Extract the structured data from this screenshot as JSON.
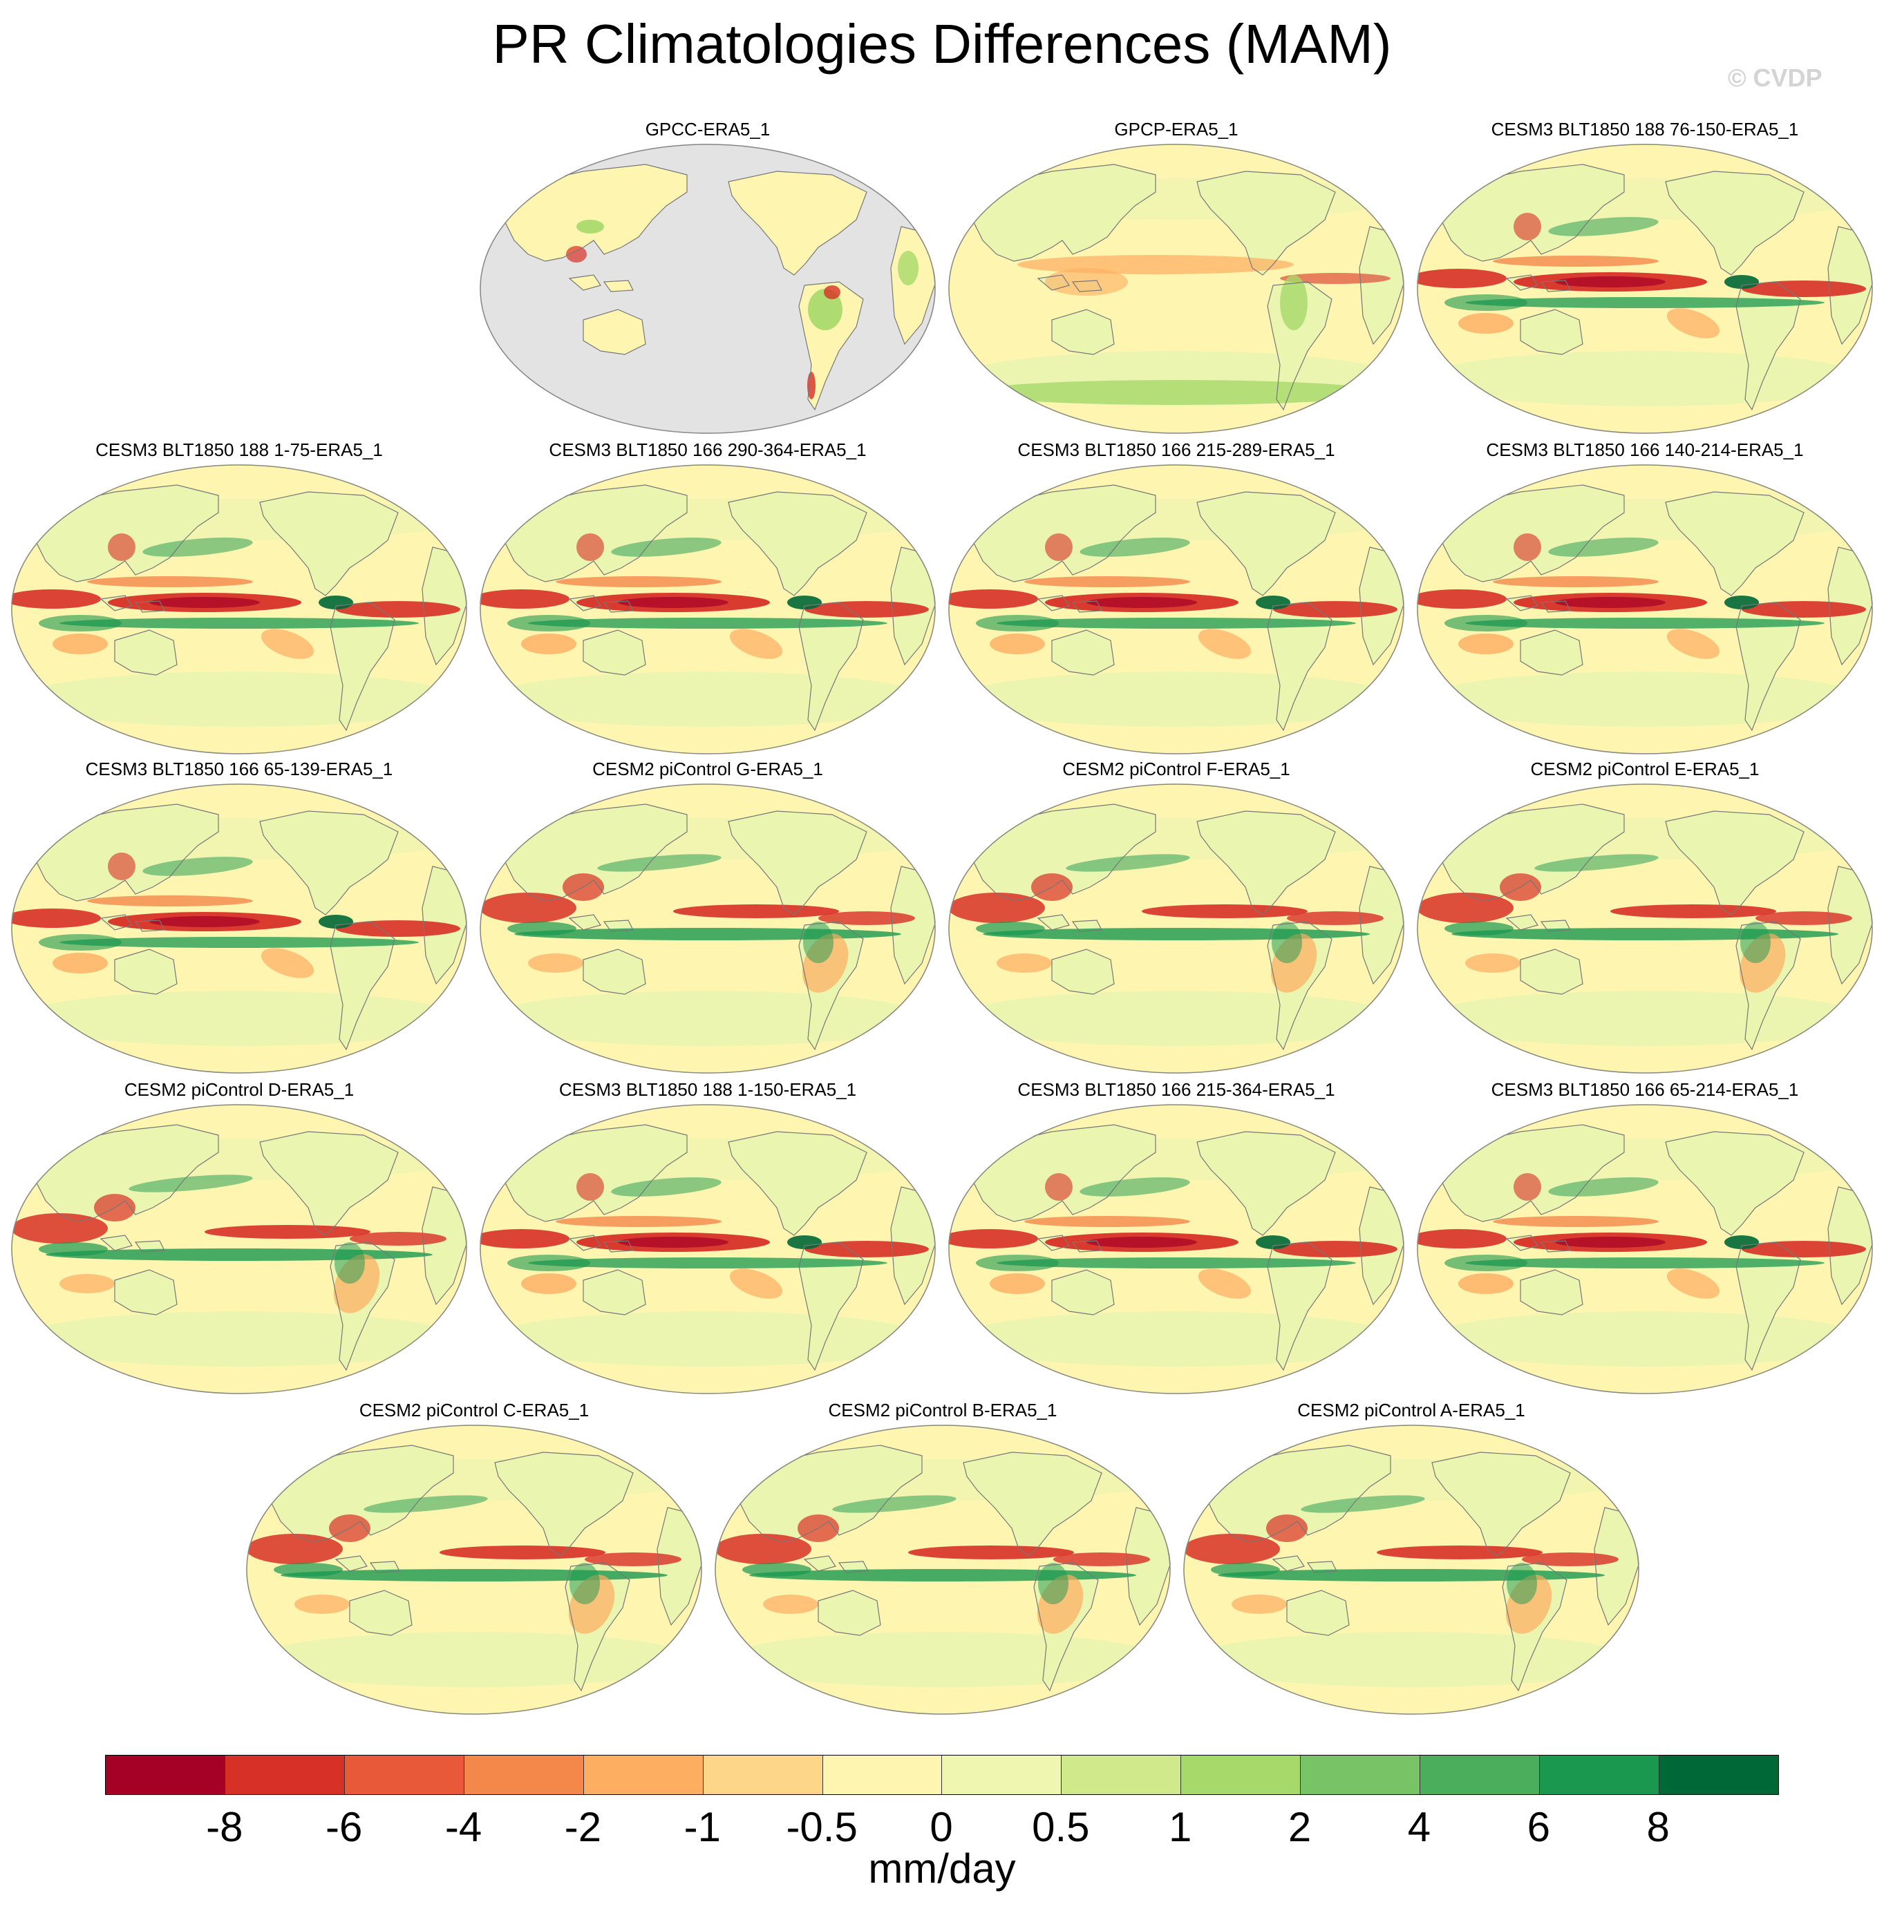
{
  "title": "PR Climatologies Differences (MAM)",
  "copyright": "© CVDP",
  "panels": [
    {
      "title": "GPCC-ERA5_1",
      "style": "land_only"
    },
    {
      "title": "GPCP-ERA5_1",
      "style": "mild"
    },
    {
      "title": "CESM3 BLT1850 188 76-150-ERA5_1",
      "style": "cesm3"
    },
    {
      "title": "CESM3 BLT1850 188 1-75-ERA5_1",
      "style": "cesm3"
    },
    {
      "title": "CESM3 BLT1850 166 290-364-ERA5_1",
      "style": "cesm3"
    },
    {
      "title": "CESM3 BLT1850 166 215-289-ERA5_1",
      "style": "cesm3"
    },
    {
      "title": "CESM3 BLT1850 166 140-214-ERA5_1",
      "style": "cesm3"
    },
    {
      "title": "CESM3 BLT1850 166 65-139-ERA5_1",
      "style": "cesm3"
    },
    {
      "title": "CESM2 piControl G-ERA5_1",
      "style": "cesm2"
    },
    {
      "title": "CESM2 piControl F-ERA5_1",
      "style": "cesm2"
    },
    {
      "title": "CESM2 piControl E-ERA5_1",
      "style": "cesm2"
    },
    {
      "title": "CESM2 piControl D-ERA5_1",
      "style": "cesm2"
    },
    {
      "title": "CESM3 BLT1850 188 1-150-ERA5_1",
      "style": "cesm3"
    },
    {
      "title": "CESM3 BLT1850 166 215-364-ERA5_1",
      "style": "cesm3"
    },
    {
      "title": "CESM3 BLT1850 166 65-214-ERA5_1",
      "style": "cesm3"
    },
    {
      "title": "CESM2 piControl C-ERA5_1",
      "style": "cesm2"
    },
    {
      "title": "CESM2 piControl B-ERA5_1",
      "style": "cesm2"
    },
    {
      "title": "CESM2 piControl A-ERA5_1",
      "style": "cesm2"
    }
  ],
  "colorbar": {
    "colors": [
      "#a50026",
      "#d73027",
      "#e8593a",
      "#f4884b",
      "#fdae61",
      "#fed68a",
      "#fef6b0",
      "#eef6b0",
      "#cfe98b",
      "#a6d96a",
      "#78c365",
      "#4bae5d",
      "#1a9850",
      "#006837"
    ],
    "tick_labels": [
      "-8",
      "-6",
      "-4",
      "-2",
      "-1",
      "-0.5",
      "0",
      "0.5",
      "1",
      "2",
      "4",
      "6",
      "8"
    ],
    "units": "mm/day"
  },
  "colors": {
    "ocean_base": "#fef6b0",
    "land_mask": "#e3e3e3",
    "land_light": "#eaf5b0",
    "wet": "#1a9850",
    "dry": "#d73027"
  }
}
